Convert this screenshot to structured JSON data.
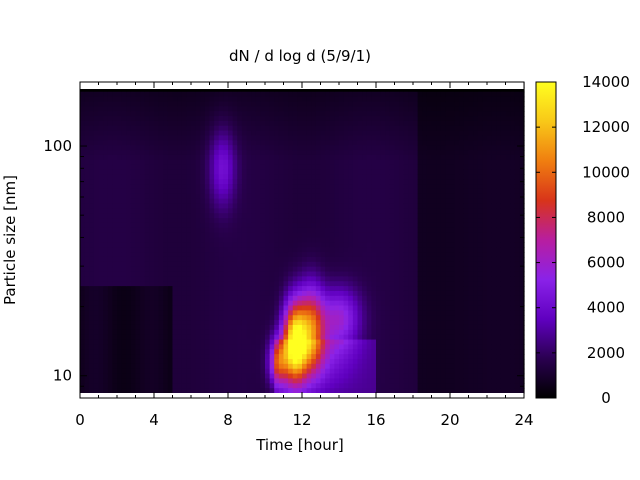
{
  "chart_data": {
    "type": "heatmap",
    "title": "dN / d log d (5/9/1)",
    "xlabel": "Time [hour]",
    "ylabel": "Particle size [nm]",
    "xlim": [
      0,
      24
    ],
    "ylim": [
      8,
      190
    ],
    "y_scale": "log",
    "x_ticks": [
      0,
      4,
      8,
      12,
      16,
      20,
      24
    ],
    "x_tick_labels": [
      "0",
      "4",
      "8",
      "12",
      "16",
      "20",
      "24"
    ],
    "y_ticks": [
      10,
      100
    ],
    "y_tick_labels": [
      "10",
      "100"
    ],
    "colorbar": {
      "range": [
        0,
        14000
      ],
      "ticks": [
        0,
        2000,
        4000,
        6000,
        8000,
        10000,
        12000,
        14000
      ],
      "tick_labels": [
        "0",
        "2000",
        "4000",
        "6000",
        "8000",
        "10000",
        "12000",
        "14000"
      ],
      "palette": [
        "#000000",
        "#2a0050",
        "#6000c0",
        "#8a22e8",
        "#b81ea0",
        "#d8341a",
        "#f07e10",
        "#f8c818",
        "#ffff20"
      ]
    },
    "grid": false,
    "features": [
      {
        "t": 11.6,
        "d": 14,
        "value": 13000
      },
      {
        "t": 12.5,
        "d": 16,
        "value": 8500
      },
      {
        "t": 10.7,
        "d": 11.5,
        "value": 7000
      },
      {
        "t": 14.0,
        "d": 18,
        "value": 5500
      },
      {
        "t": 7.7,
        "d": 80,
        "value": 4000
      }
    ]
  }
}
